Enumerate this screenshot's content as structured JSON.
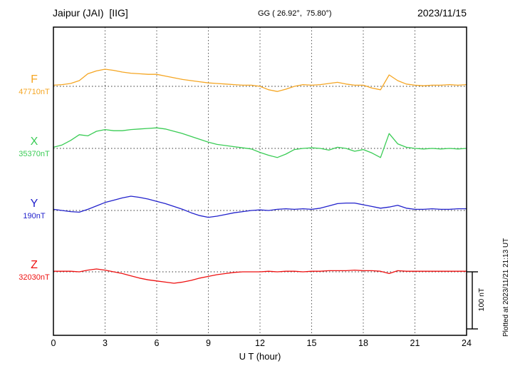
{
  "header": {
    "station": "Jaipur (JAI)  [IIG]",
    "coordinates": "GG ( 26.92°,  75.80°)",
    "date": "2023/11/15"
  },
  "x_axis": {
    "label": "U T (hour)",
    "ticks": [
      "0",
      "3",
      "6",
      "9",
      "12",
      "15",
      "18",
      "21",
      "24"
    ]
  },
  "scale_bar": {
    "label": "100 nT",
    "nT": 100
  },
  "watermark": "Plotted at 2023/11/21 21:13 UT",
  "chart_data": {
    "type": "line",
    "title": "Magnetogram Jaipur (JAI) [IIG] 2023/11/15",
    "xlabel": "U T (hour)",
    "x_range": [
      0,
      24
    ],
    "grid": "dotted vertical every 3 h, dotted horizontal baselines",
    "legend_position": "left, one colored label per stacked trace",
    "amplitude_scale": "100 nT per scale-bar division",
    "x": [
      0,
      0.5,
      1,
      1.5,
      2,
      2.5,
      3,
      3.5,
      4,
      4.5,
      5,
      5.5,
      6,
      6.5,
      7,
      7.5,
      8,
      8.5,
      9,
      9.5,
      10,
      10.5,
      11,
      11.5,
      12,
      12.5,
      13,
      13.5,
      14,
      14.5,
      15,
      15.5,
      16,
      16.5,
      17,
      17.5,
      18,
      18.5,
      19,
      19.5,
      20,
      20.5,
      21,
      21.5,
      22,
      22.5,
      23,
      23.5,
      24
    ],
    "series": [
      {
        "name": "F",
        "baseline_label": "47710nT",
        "baseline_nT": 47710,
        "color": "#F5A623",
        "values": [
          2,
          3,
          5,
          10,
          22,
          27,
          30,
          28,
          25,
          23,
          22,
          21,
          21,
          18,
          15,
          12,
          10,
          8,
          6,
          5,
          4,
          3,
          2,
          2,
          0,
          -6,
          -9,
          -5,
          0,
          3,
          2,
          3,
          5,
          7,
          4,
          2,
          2,
          -3,
          -6,
          20,
          10,
          4,
          2,
          1,
          2,
          2,
          3,
          2,
          3
        ]
      },
      {
        "name": "X",
        "baseline_label": "35370nT",
        "baseline_nT": 35370,
        "color": "#3ACC55",
        "values": [
          2,
          6,
          14,
          24,
          22,
          30,
          33,
          31,
          31,
          33,
          34,
          35,
          36,
          34,
          30,
          26,
          21,
          16,
          11,
          7,
          5,
          3,
          1,
          -1,
          -7,
          -12,
          -16,
          -10,
          -2,
          0,
          1,
          0,
          -3,
          2,
          0,
          -5,
          -2,
          -8,
          -16,
          26,
          8,
          2,
          0,
          -1,
          0,
          -1,
          0,
          -1,
          0
        ]
      },
      {
        "name": "Y",
        "baseline_label": "190nT",
        "baseline_nT": 190,
        "color": "#2222CC",
        "values": [
          2,
          0,
          -2,
          -3,
          2,
          8,
          14,
          18,
          22,
          25,
          23,
          20,
          16,
          12,
          7,
          2,
          -4,
          -9,
          -12,
          -10,
          -7,
          -4,
          -2,
          0,
          1,
          0,
          2,
          3,
          2,
          3,
          2,
          4,
          8,
          12,
          13,
          13,
          10,
          7,
          4,
          6,
          9,
          4,
          2,
          2,
          3,
          2,
          2,
          3,
          3
        ]
      },
      {
        "name": "Z",
        "baseline_label": "32030nT",
        "baseline_nT": 32030,
        "color": "#EE1111",
        "values": [
          1,
          1,
          1,
          0,
          3,
          5,
          3,
          0,
          -3,
          -7,
          -11,
          -14,
          -16,
          -18,
          -20,
          -18,
          -15,
          -11,
          -8,
          -5,
          -3,
          -1,
          0,
          0,
          0,
          1,
          0,
          1,
          1,
          0,
          1,
          1,
          2,
          2,
          2,
          3,
          2,
          2,
          1,
          -3,
          2,
          1,
          1,
          1,
          1,
          1,
          1,
          1,
          1
        ]
      }
    ]
  }
}
